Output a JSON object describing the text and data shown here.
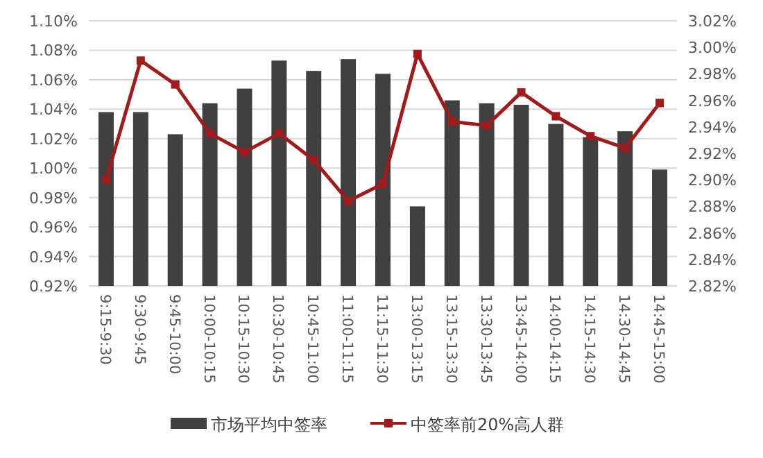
{
  "chart_data": {
    "type": "bar",
    "categories": [
      "9:15-9:30",
      "9:30-9:45",
      "9:45-10:00",
      "10:00-10:15",
      "10:15-10:30",
      "10:30-10:45",
      "10:45-11:00",
      "11:00-11:15",
      "11:15-11:30",
      "13:00-13:15",
      "13:15-13:30",
      "13:30-13:45",
      "13:45-14:00",
      "14:00-14:15",
      "14:15-14:30",
      "14:30-14:45",
      "14:45-15:00"
    ],
    "series": [
      {
        "name": "市场平均中签率",
        "color": "#404040",
        "values": [
          1.038,
          1.038,
          1.023,
          1.044,
          1.054,
          1.073,
          1.066,
          1.074,
          1.064,
          0.974,
          1.046,
          1.044,
          1.043,
          1.03,
          1.021,
          1.025,
          0.999
        ]
      },
      {
        "name": "中签率前20%高人群",
        "type": "line",
        "axis": "y2",
        "color": "#a01c1c",
        "marker": "square",
        "values": [
          2.9,
          2.99,
          2.972,
          2.935,
          2.921,
          2.935,
          2.915,
          2.884,
          2.897,
          2.995,
          2.944,
          2.941,
          2.966,
          2.948,
          2.933,
          2.924,
          2.958
        ]
      }
    ],
    "ylim": [
      0.92,
      1.1
    ],
    "yticks": [
      {
        "value": 0.92,
        "label": "0.92%"
      },
      {
        "value": 0.94,
        "label": "0.94%"
      },
      {
        "value": 0.96,
        "label": "0.96%"
      },
      {
        "value": 0.98,
        "label": "0.98%"
      },
      {
        "value": 1.0,
        "label": "1.00%"
      },
      {
        "value": 1.02,
        "label": "1.02%"
      },
      {
        "value": 1.04,
        "label": "1.04%"
      },
      {
        "value": 1.06,
        "label": "1.06%"
      },
      {
        "value": 1.08,
        "label": "1.08%"
      },
      {
        "value": 1.1,
        "label": "1.10%"
      }
    ],
    "y2lim": [
      2.82,
      3.02
    ],
    "y2ticks": [
      {
        "value": 2.82,
        "label": "2.82%"
      },
      {
        "value": 2.84,
        "label": "2.84%"
      },
      {
        "value": 2.86,
        "label": "2.86%"
      },
      {
        "value": 2.88,
        "label": "2.88%"
      },
      {
        "value": 2.9,
        "label": "2.90%"
      },
      {
        "value": 2.92,
        "label": "2.92%"
      },
      {
        "value": 2.94,
        "label": "2.94%"
      },
      {
        "value": 2.96,
        "label": "2.96%"
      },
      {
        "value": 2.98,
        "label": "2.98%"
      },
      {
        "value": 3.0,
        "label": "3.00%"
      },
      {
        "value": 3.02,
        "label": "3.02%"
      }
    ],
    "grid": "y",
    "legend": "bottom"
  }
}
